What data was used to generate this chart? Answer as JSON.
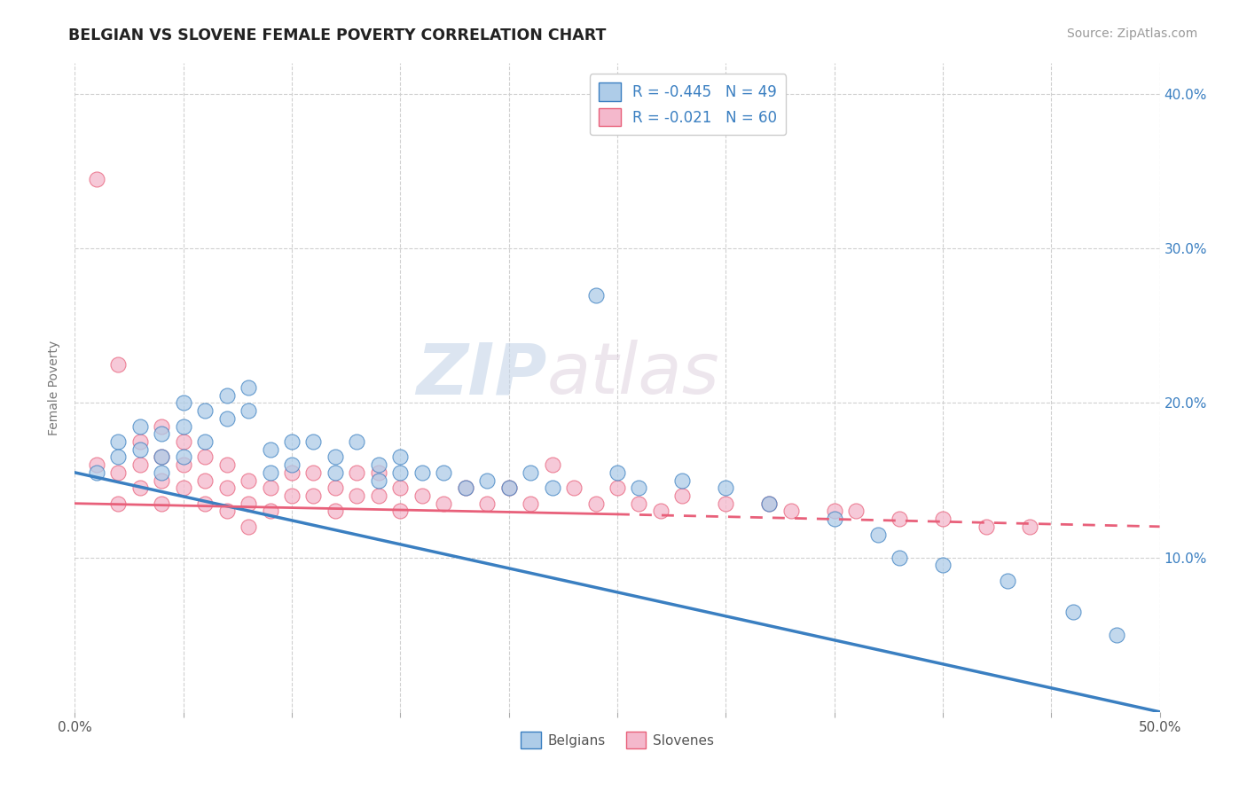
{
  "title": "BELGIAN VS SLOVENE FEMALE POVERTY CORRELATION CHART",
  "source_text": "Source: ZipAtlas.com",
  "ylabel": "Female Poverty",
  "xlim": [
    0.0,
    0.5
  ],
  "ylim": [
    0.0,
    0.42
  ],
  "xticks": [
    0.0,
    0.05,
    0.1,
    0.15,
    0.2,
    0.25,
    0.3,
    0.35,
    0.4,
    0.45,
    0.5
  ],
  "ytick_positions": [
    0.1,
    0.2,
    0.3,
    0.4
  ],
  "ytick_labels": [
    "10.0%",
    "20.0%",
    "30.0%",
    "40.0%"
  ],
  "belgian_color": "#aecce8",
  "slovene_color": "#f4b8cc",
  "belgian_line_color": "#3a7fc1",
  "slovene_line_color": "#e8607a",
  "R_belgian": -0.445,
  "N_belgian": 49,
  "R_slovene": -0.021,
  "N_slovene": 60,
  "watermark_zip": "ZIP",
  "watermark_atlas": "atlas",
  "background_color": "#ffffff",
  "grid_color": "#d0d0d0",
  "legend_label_color": "#3a7fc1",
  "belgians_x": [
    0.01,
    0.02,
    0.02,
    0.03,
    0.03,
    0.04,
    0.04,
    0.04,
    0.05,
    0.05,
    0.05,
    0.06,
    0.06,
    0.07,
    0.07,
    0.08,
    0.08,
    0.09,
    0.09,
    0.1,
    0.1,
    0.11,
    0.12,
    0.12,
    0.13,
    0.14,
    0.14,
    0.15,
    0.15,
    0.16,
    0.17,
    0.18,
    0.19,
    0.2,
    0.21,
    0.22,
    0.24,
    0.25,
    0.26,
    0.28,
    0.3,
    0.32,
    0.35,
    0.37,
    0.38,
    0.4,
    0.43,
    0.46,
    0.48
  ],
  "belgians_y": [
    0.155,
    0.175,
    0.165,
    0.185,
    0.17,
    0.18,
    0.165,
    0.155,
    0.2,
    0.185,
    0.165,
    0.195,
    0.175,
    0.205,
    0.19,
    0.21,
    0.195,
    0.17,
    0.155,
    0.175,
    0.16,
    0.175,
    0.165,
    0.155,
    0.175,
    0.16,
    0.15,
    0.165,
    0.155,
    0.155,
    0.155,
    0.145,
    0.15,
    0.145,
    0.155,
    0.145,
    0.27,
    0.155,
    0.145,
    0.15,
    0.145,
    0.135,
    0.125,
    0.115,
    0.1,
    0.095,
    0.085,
    0.065,
    0.05
  ],
  "slovenes_x": [
    0.01,
    0.01,
    0.02,
    0.02,
    0.02,
    0.03,
    0.03,
    0.03,
    0.04,
    0.04,
    0.04,
    0.04,
    0.05,
    0.05,
    0.05,
    0.06,
    0.06,
    0.06,
    0.07,
    0.07,
    0.07,
    0.08,
    0.08,
    0.08,
    0.09,
    0.09,
    0.1,
    0.1,
    0.11,
    0.11,
    0.12,
    0.12,
    0.13,
    0.13,
    0.14,
    0.14,
    0.15,
    0.15,
    0.16,
    0.17,
    0.18,
    0.19,
    0.2,
    0.21,
    0.22,
    0.23,
    0.24,
    0.25,
    0.26,
    0.27,
    0.28,
    0.3,
    0.32,
    0.33,
    0.35,
    0.36,
    0.38,
    0.4,
    0.42,
    0.44
  ],
  "slovenes_y": [
    0.345,
    0.16,
    0.225,
    0.155,
    0.135,
    0.175,
    0.16,
    0.145,
    0.185,
    0.165,
    0.15,
    0.135,
    0.175,
    0.16,
    0.145,
    0.165,
    0.15,
    0.135,
    0.16,
    0.145,
    0.13,
    0.15,
    0.135,
    0.12,
    0.145,
    0.13,
    0.155,
    0.14,
    0.155,
    0.14,
    0.145,
    0.13,
    0.155,
    0.14,
    0.155,
    0.14,
    0.145,
    0.13,
    0.14,
    0.135,
    0.145,
    0.135,
    0.145,
    0.135,
    0.16,
    0.145,
    0.135,
    0.145,
    0.135,
    0.13,
    0.14,
    0.135,
    0.135,
    0.13,
    0.13,
    0.13,
    0.125,
    0.125,
    0.12,
    0.12
  ]
}
